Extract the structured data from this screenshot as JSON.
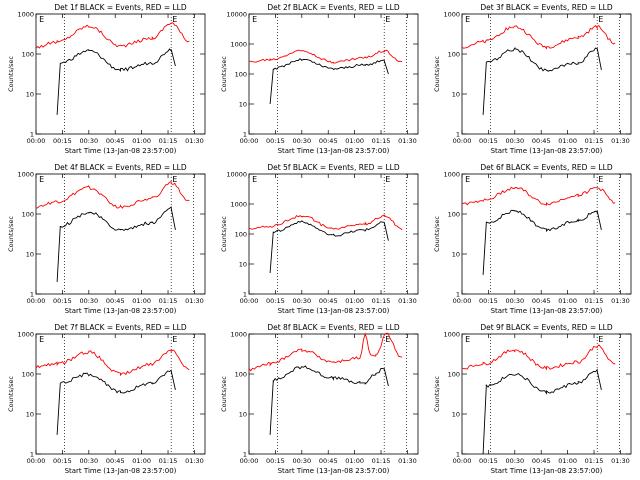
{
  "chart_data": [
    {
      "type": "line",
      "title": "Det 1f BLACK = Events, RED = LLD",
      "xlabel": "Start Time (13-Jan-08 23:57:00)",
      "ylabel": "Counts/sec",
      "xlim": [
        0,
        1.6
      ],
      "ylim": [
        1,
        1000
      ],
      "yscale": "log",
      "xticks": [
        "00:00",
        "00:15",
        "00:30",
        "00:45",
        "01:00",
        "01:15",
        "01:30"
      ],
      "yticks": [
        "1",
        "10",
        "100",
        "1000"
      ],
      "markers": {
        "dotted_x": [
          0.27,
          1.28,
          1.49
        ],
        "letters": [
          {
            "x": 0.02,
            "text": "E"
          },
          {
            "x": 1.28,
            "text": "E"
          }
        ]
      },
      "series": [
        {
          "color": "#ff0000",
          "x": [
            0,
            0.2,
            0.5,
            0.8,
            1.1,
            1.28,
            1.45
          ],
          "values": [
            150,
            200,
            500,
            160,
            250,
            600,
            210
          ]
        },
        {
          "color": "#000000",
          "x": [
            0.2,
            0.23,
            0.5,
            0.8,
            1.1,
            1.28,
            1.32
          ],
          "values": [
            3,
            60,
            120,
            40,
            60,
            130,
            50
          ]
        }
      ]
    },
    {
      "type": "line",
      "title": "Det 2f BLACK = Events, RED = LLD",
      "xlabel": "Start Time (13-Jan-08 23:57:00)",
      "ylabel": "Counts/sec",
      "xlim": [
        0,
        1.6
      ],
      "ylim": [
        1,
        10000
      ],
      "yscale": "log",
      "xticks": [
        "00:00",
        "00:15",
        "00:30",
        "00:45",
        "01:00",
        "01:15",
        "01:30"
      ],
      "yticks": [
        "1",
        "10",
        "100",
        "1000",
        "10000"
      ],
      "markers": {
        "dotted_x": [
          0.27,
          1.28,
          1.49
        ],
        "letters": [
          {
            "x": 0.02,
            "text": "E"
          },
          {
            "x": 1.28,
            "text": "E"
          }
        ]
      },
      "series": [
        {
          "color": "#ff0000",
          "x": [
            0,
            0.2,
            0.5,
            0.8,
            1.1,
            1.28,
            1.45
          ],
          "values": [
            250,
            300,
            600,
            250,
            350,
            600,
            250
          ]
        },
        {
          "color": "#000000",
          "x": [
            0.2,
            0.23,
            0.5,
            0.8,
            1.1,
            1.28,
            1.32
          ],
          "values": [
            10,
            150,
            300,
            150,
            200,
            280,
            100
          ]
        }
      ]
    },
    {
      "type": "line",
      "title": "Det 3f BLACK = Events, RED = LLD",
      "xlabel": "Start Time (13-Jan-08 23:57:00)",
      "ylabel": "Counts/sec",
      "xlim": [
        0,
        1.6
      ],
      "ylim": [
        1,
        1000
      ],
      "yscale": "log",
      "xticks": [
        "00:00",
        "00:15",
        "00:30",
        "00:45",
        "01:00",
        "01:15",
        "01:30"
      ],
      "yticks": [
        "1",
        "10",
        "100",
        "1000"
      ],
      "markers": {
        "dotted_x": [
          0.27,
          1.28,
          1.49
        ],
        "letters": [
          {
            "x": 0.02,
            "text": "E"
          },
          {
            "x": 1.28,
            "text": "E"
          }
        ]
      },
      "series": [
        {
          "color": "#ff0000",
          "x": [
            0,
            0.2,
            0.5,
            0.8,
            1.1,
            1.28,
            1.45
          ],
          "values": [
            150,
            200,
            480,
            150,
            260,
            480,
            180
          ]
        },
        {
          "color": "#000000",
          "x": [
            0.2,
            0.23,
            0.5,
            0.8,
            1.1,
            1.28,
            1.32
          ],
          "values": [
            3,
            60,
            130,
            40,
            60,
            140,
            40
          ]
        }
      ]
    },
    {
      "type": "line",
      "title": "Det 4f BLACK = Events, RED = LLD",
      "xlabel": "Start Time (13-Jan-08 23:57:00)",
      "ylabel": "Counts/sec",
      "xlim": [
        0,
        1.6
      ],
      "ylim": [
        1,
        1000
      ],
      "yscale": "log",
      "xticks": [
        "00:00",
        "00:15",
        "00:30",
        "00:45",
        "01:00",
        "01:15",
        "01:30"
      ],
      "yticks": [
        "1",
        "10",
        "100",
        "1000"
      ],
      "markers": {
        "dotted_x": [
          0.27,
          1.28,
          1.49
        ],
        "letters": [
          {
            "x": 0.02,
            "text": "E"
          },
          {
            "x": 1.28,
            "text": "E"
          }
        ]
      },
      "series": [
        {
          "color": "#ff0000",
          "x": [
            0,
            0.2,
            0.5,
            0.8,
            1.1,
            1.28,
            1.45
          ],
          "values": [
            150,
            200,
            450,
            150,
            250,
            600,
            200
          ]
        },
        {
          "color": "#000000",
          "x": [
            0.2,
            0.23,
            0.5,
            0.8,
            1.1,
            1.28,
            1.32
          ],
          "values": [
            2,
            50,
            110,
            40,
            60,
            140,
            40
          ]
        }
      ]
    },
    {
      "type": "line",
      "title": "Det 5f BLACK = Events, RED = LLD",
      "xlabel": "Start Time (13-Jan-08 23:57:00)",
      "ylabel": "Counts/sec",
      "xlim": [
        0,
        1.6
      ],
      "ylim": [
        1,
        10000
      ],
      "yscale": "log",
      "xticks": [
        "00:00",
        "00:15",
        "00:30",
        "00:45",
        "01:00",
        "01:15",
        "01:30"
      ],
      "yticks": [
        "1",
        "10",
        "100",
        "1000",
        "10000"
      ],
      "markers": {
        "dotted_x": [
          0.27,
          1.28,
          1.49
        ],
        "letters": [
          {
            "x": 0.02,
            "text": "E"
          },
          {
            "x": 1.28,
            "text": "E"
          }
        ]
      },
      "series": [
        {
          "color": "#ff0000",
          "x": [
            0,
            0.2,
            0.5,
            0.8,
            1.1,
            1.28,
            1.45
          ],
          "values": [
            150,
            180,
            400,
            150,
            220,
            400,
            150
          ]
        },
        {
          "color": "#000000",
          "x": [
            0.2,
            0.23,
            0.5,
            0.8,
            1.1,
            1.28,
            1.32
          ],
          "values": [
            5,
            120,
            250,
            90,
            140,
            250,
            60
          ]
        }
      ]
    },
    {
      "type": "line",
      "title": "Det 6f BLACK = Events, RED = LLD",
      "xlabel": "Start Time (13-Jan-08 23:57:00)",
      "ylabel": "Counts/sec",
      "xlim": [
        0,
        1.6
      ],
      "ylim": [
        1,
        1000
      ],
      "yscale": "log",
      "xticks": [
        "00:00",
        "00:15",
        "00:30",
        "00:45",
        "01:00",
        "01:15",
        "01:30"
      ],
      "yticks": [
        "1",
        "10",
        "100",
        "1000"
      ],
      "markers": {
        "dotted_x": [
          0.27,
          1.28,
          1.49
        ],
        "letters": [
          {
            "x": 0.02,
            "text": "E"
          },
          {
            "x": 1.28,
            "text": "E"
          }
        ]
      },
      "series": [
        {
          "color": "#ff0000",
          "x": [
            0,
            0.2,
            0.5,
            0.8,
            1.1,
            1.28,
            1.45
          ],
          "values": [
            180,
            220,
            450,
            180,
            300,
            450,
            200
          ]
        },
        {
          "color": "#000000",
          "x": [
            0.2,
            0.23,
            0.5,
            0.8,
            1.1,
            1.28,
            1.32
          ],
          "values": [
            3,
            60,
            120,
            40,
            70,
            120,
            40
          ]
        }
      ]
    },
    {
      "type": "line",
      "title": "Det 7f BLACK = Events, RED = LLD",
      "xlabel": "Start Time (13-Jan-08 23:57:00)",
      "ylabel": "Counts/sec",
      "xlim": [
        0,
        1.6
      ],
      "ylim": [
        1,
        1000
      ],
      "yscale": "log",
      "xticks": [
        "00:00",
        "00:15",
        "00:30",
        "00:45",
        "01:00",
        "01:15",
        "01:30"
      ],
      "yticks": [
        "1",
        "10",
        "100",
        "1000"
      ],
      "markers": {
        "dotted_x": [
          0.27,
          1.28,
          1.49
        ],
        "letters": [
          {
            "x": 0.02,
            "text": "E"
          },
          {
            "x": 1.28,
            "text": "E"
          }
        ]
      },
      "series": [
        {
          "color": "#ff0000",
          "x": [
            0,
            0.2,
            0.5,
            0.8,
            1.1,
            1.28,
            1.45
          ],
          "values": [
            150,
            180,
            350,
            100,
            180,
            400,
            130
          ]
        },
        {
          "color": "#000000",
          "x": [
            0.2,
            0.23,
            0.5,
            0.8,
            1.1,
            1.28,
            1.32
          ],
          "values": [
            3,
            60,
            100,
            35,
            60,
            120,
            40
          ]
        }
      ]
    },
    {
      "type": "line",
      "title": "Det 8f BLACK = Events, RED = LLD",
      "xlabel": "Start Time (13-Jan-08 23:57:00)",
      "ylabel": "Counts/sec",
      "xlim": [
        0,
        1.6
      ],
      "ylim": [
        1,
        1000
      ],
      "yscale": "log",
      "xticks": [
        "00:00",
        "00:15",
        "00:30",
        "00:45",
        "01:00",
        "01:15",
        "01:30"
      ],
      "yticks": [
        "1",
        "10",
        "100",
        "1000"
      ],
      "markers": {
        "dotted_x": [
          0.27,
          1.28,
          1.49
        ],
        "letters": [
          {
            "x": 1.28,
            "text": "E"
          }
        ]
      },
      "series": [
        {
          "color": "#ff0000",
          "x": [
            0,
            0.2,
            0.5,
            0.8,
            1.05,
            1.1,
            1.15,
            1.2,
            1.3,
            1.45
          ],
          "values": [
            130,
            180,
            400,
            200,
            250,
            1000,
            300,
            280,
            1000,
            250
          ]
        },
        {
          "color": "#000000",
          "x": [
            0.2,
            0.23,
            0.5,
            0.8,
            1.05,
            1.1,
            1.2,
            1.28,
            1.32
          ],
          "values": [
            3,
            70,
            150,
            80,
            60,
            60,
            100,
            140,
            50
          ]
        }
      ]
    },
    {
      "type": "line",
      "title": "Det 9f BLACK = Events, RED = LLD",
      "xlabel": "Start Time (13-Jan-08 23:57:00)",
      "ylabel": "Counts/sec",
      "xlim": [
        0,
        1.6
      ],
      "ylim": [
        1,
        1000
      ],
      "yscale": "log",
      "xticks": [
        "00:00",
        "00:15",
        "00:30",
        "00:45",
        "01:00",
        "01:15",
        "01:30"
      ],
      "yticks": [
        "1",
        "10",
        "100",
        "1000"
      ],
      "markers": {
        "dotted_x": [
          0.27,
          1.28,
          1.49
        ],
        "letters": [
          {
            "x": 0.02,
            "text": "E"
          },
          {
            "x": 1.28,
            "text": "E"
          }
        ]
      },
      "series": [
        {
          "color": "#ff0000",
          "x": [
            0,
            0.2,
            0.5,
            0.8,
            1.1,
            1.28,
            1.45
          ],
          "values": [
            140,
            180,
            400,
            140,
            200,
            500,
            170
          ]
        },
        {
          "color": "#000000",
          "x": [
            0.2,
            0.23,
            0.5,
            0.8,
            1.1,
            1.28,
            1.32
          ],
          "values": [
            1,
            50,
            100,
            35,
            60,
            120,
            40
          ]
        }
      ]
    }
  ]
}
